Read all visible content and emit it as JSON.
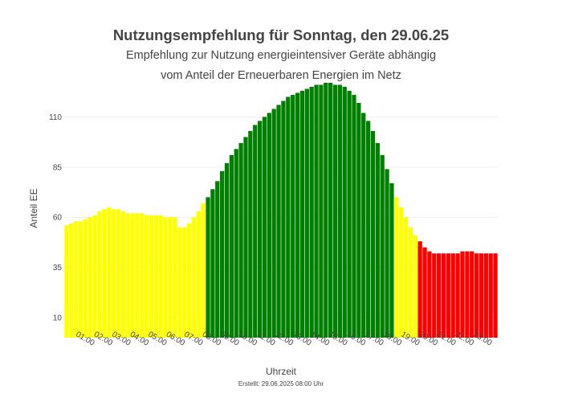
{
  "chart_data": {
    "type": "bar",
    "title": "Nutzungsempfehlung für Sonntag, den 29.06.25",
    "subtitle_lines": [
      "Empfehlung zur Nutzung energieintensiver Geräte abhängig",
      "vom Anteil der Erneuerbaren Energien im Netz"
    ],
    "xlabel": "Uhrzeit",
    "ylabel": "Anteil EE",
    "footer": "Erstellt: 29.06.2025 08:00 Uhr",
    "ylim": [
      0,
      125
    ],
    "yticks": [
      10,
      35,
      60,
      85,
      110
    ],
    "xtick_labels": [
      "01:00",
      "02:00",
      "03:00",
      "04:00",
      "05:00",
      "06:00",
      "07:00",
      "08:00",
      "09:00",
      "10:00",
      "11:00",
      "12:00",
      "13:00",
      "14:00",
      "15:00",
      "16:00",
      "17:00",
      "18:00",
      "19:00",
      "20:00",
      "21:00",
      "22:00",
      "23:00"
    ],
    "grid": true,
    "colors": {
      "yellow": "#ffff00",
      "green": "#008000",
      "red": "#ff0000",
      "grid": "#eeeeee"
    },
    "values": [
      56,
      57,
      58,
      58,
      59,
      60,
      61,
      63,
      64,
      65,
      64,
      64,
      63,
      62,
      62,
      62,
      62,
      61,
      61,
      61,
      61,
      60,
      60,
      60,
      55,
      55,
      57,
      60,
      63,
      67,
      70,
      74,
      78,
      83,
      87,
      91,
      94,
      97,
      100,
      103,
      106,
      108,
      110,
      112,
      114,
      116,
      118,
      120,
      121,
      122,
      123,
      124,
      125,
      126,
      126,
      127,
      127,
      126,
      126,
      125,
      123,
      121,
      117,
      112,
      108,
      103,
      97,
      91,
      84,
      77,
      70,
      65,
      60,
      55,
      51,
      48,
      45,
      43,
      42,
      42,
      42,
      42,
      42,
      42,
      43,
      43,
      43,
      42,
      42,
      42,
      42,
      42
    ],
    "bar_colors": [
      "yellow",
      "yellow",
      "yellow",
      "yellow",
      "yellow",
      "yellow",
      "yellow",
      "yellow",
      "yellow",
      "yellow",
      "yellow",
      "yellow",
      "yellow",
      "yellow",
      "yellow",
      "yellow",
      "yellow",
      "yellow",
      "yellow",
      "yellow",
      "yellow",
      "yellow",
      "yellow",
      "yellow",
      "yellow",
      "yellow",
      "yellow",
      "yellow",
      "yellow",
      "yellow",
      "green",
      "green",
      "green",
      "green",
      "green",
      "green",
      "green",
      "green",
      "green",
      "green",
      "green",
      "green",
      "green",
      "green",
      "green",
      "green",
      "green",
      "green",
      "green",
      "green",
      "green",
      "green",
      "green",
      "green",
      "green",
      "green",
      "green",
      "green",
      "green",
      "green",
      "green",
      "green",
      "green",
      "green",
      "green",
      "green",
      "green",
      "green",
      "green",
      "green",
      "yellow",
      "yellow",
      "yellow",
      "yellow",
      "yellow",
      "red",
      "red",
      "red",
      "red",
      "red",
      "red",
      "red",
      "red",
      "red",
      "red",
      "red",
      "red",
      "red",
      "red",
      "red",
      "red",
      "red"
    ]
  }
}
